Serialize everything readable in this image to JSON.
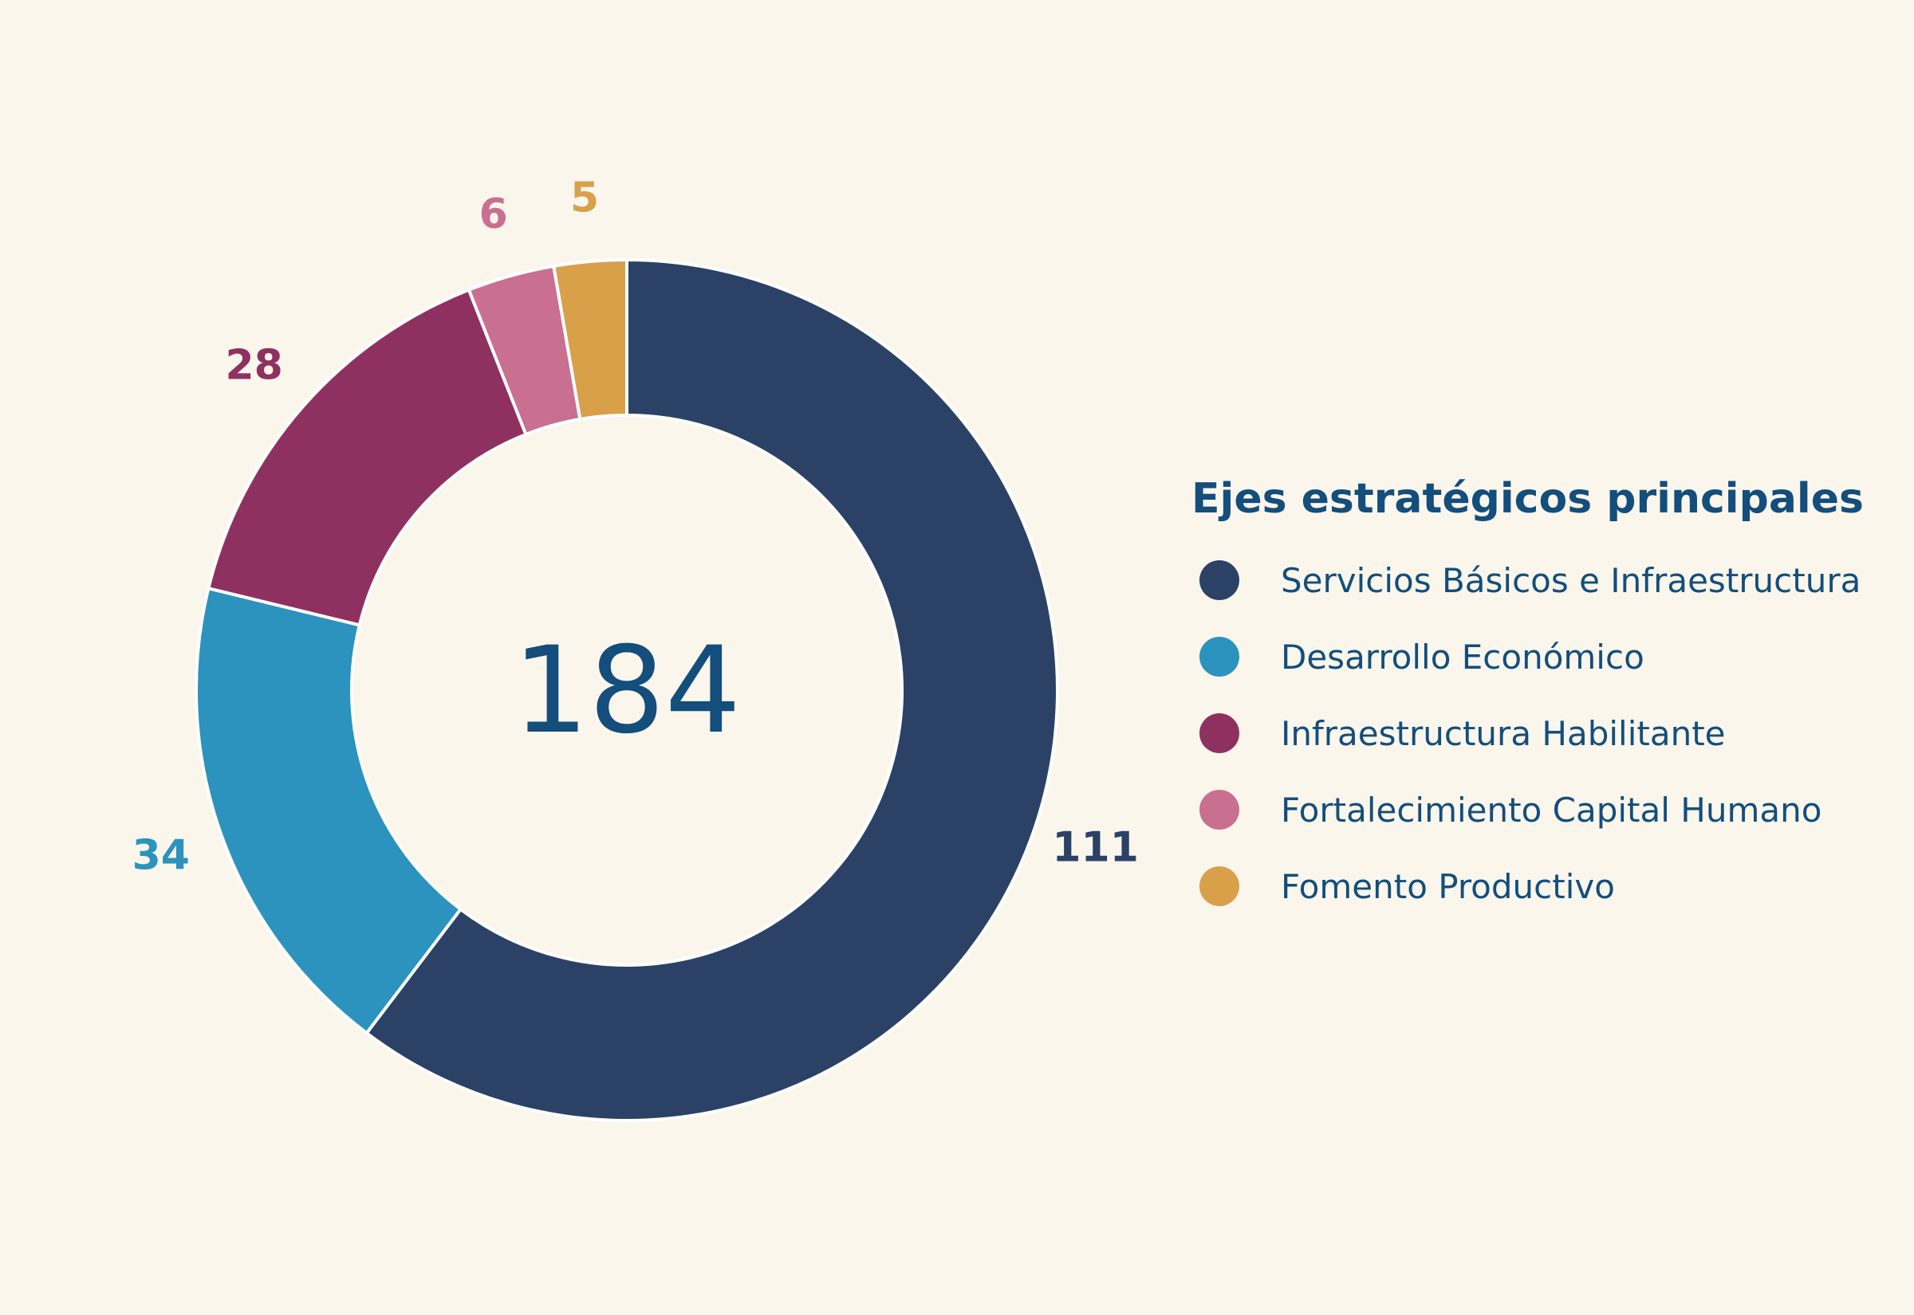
{
  "chart_data": {
    "type": "pie",
    "variant": "donut",
    "legend_title": "Ejes estratégicos principales",
    "center_total": "184",
    "legend_position": "right",
    "text_color": "#134e7c",
    "start": "top",
    "direction": "clockwise",
    "slices": [
      {
        "name": "Servicios Básicos e Infraestructura",
        "value": 111,
        "color": "#2b4266"
      },
      {
        "name": "Desarrollo Económico",
        "value": 34,
        "color": "#2b93bd"
      },
      {
        "name": "Infraestructura Habilitante",
        "value": 28,
        "color": "#8f3160"
      },
      {
        "name": "Fortalecimiento Capital Humano",
        "value": 6,
        "color": "#c96f8f"
      },
      {
        "name": "Fomento Productivo",
        "value": 5,
        "color": "#d9a04a"
      }
    ]
  }
}
